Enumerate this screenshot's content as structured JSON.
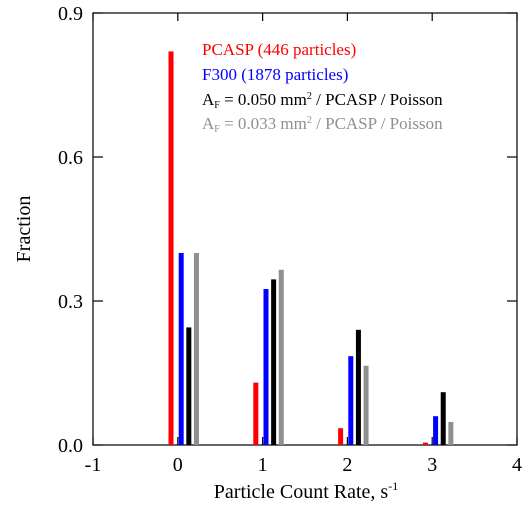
{
  "chart_data": {
    "type": "bar",
    "xlabel": "Particle Count Rate, s",
    "xlabel_superscript": "-1",
    "ylabel": "Fraction",
    "xlim": [
      -1,
      4
    ],
    "ylim": [
      0,
      0.9
    ],
    "xticks": [
      "-1",
      "0",
      "1",
      "2",
      "3",
      "4"
    ],
    "yticks": [
      "0.0",
      "0.3",
      "0.6",
      "0.9"
    ],
    "categories": [
      0,
      1,
      2,
      3
    ],
    "series": [
      {
        "name": "PCASP (446 particles)",
        "color": "#ff0000",
        "values": [
          0.82,
          0.13,
          0.035,
          0.005
        ]
      },
      {
        "name": "F300 (1878 particles)",
        "color": "#0000ff",
        "values": [
          0.4,
          0.325,
          0.185,
          0.06
        ]
      },
      {
        "name": "A_F = 0.050 mm² / PCASP / Poisson",
        "color": "#000000",
        "values": [
          0.245,
          0.345,
          0.24,
          0.11
        ]
      },
      {
        "name": "A_F = 0.033 mm² / PCASP / Poisson",
        "color": "#909090",
        "values": [
          0.4,
          0.365,
          0.165,
          0.048
        ]
      }
    ],
    "legend": {
      "placement": "top-right",
      "entries": [
        {
          "text": "PCASP (446 particles)",
          "color": "#ff0000"
        },
        {
          "text": "F300 (1878 particles)",
          "color": "#0000ff"
        },
        {
          "prefix": "A",
          "sub": "F",
          "mid": " =  0.050 mm",
          "sup": "2",
          "suffix": " / PCASP / Poisson",
          "color": "#000000"
        },
        {
          "prefix": "A",
          "sub": "F",
          "mid": " =  0.033 mm",
          "sup": "2",
          "suffix": " / PCASP / Poisson",
          "color": "#909090"
        }
      ]
    }
  }
}
